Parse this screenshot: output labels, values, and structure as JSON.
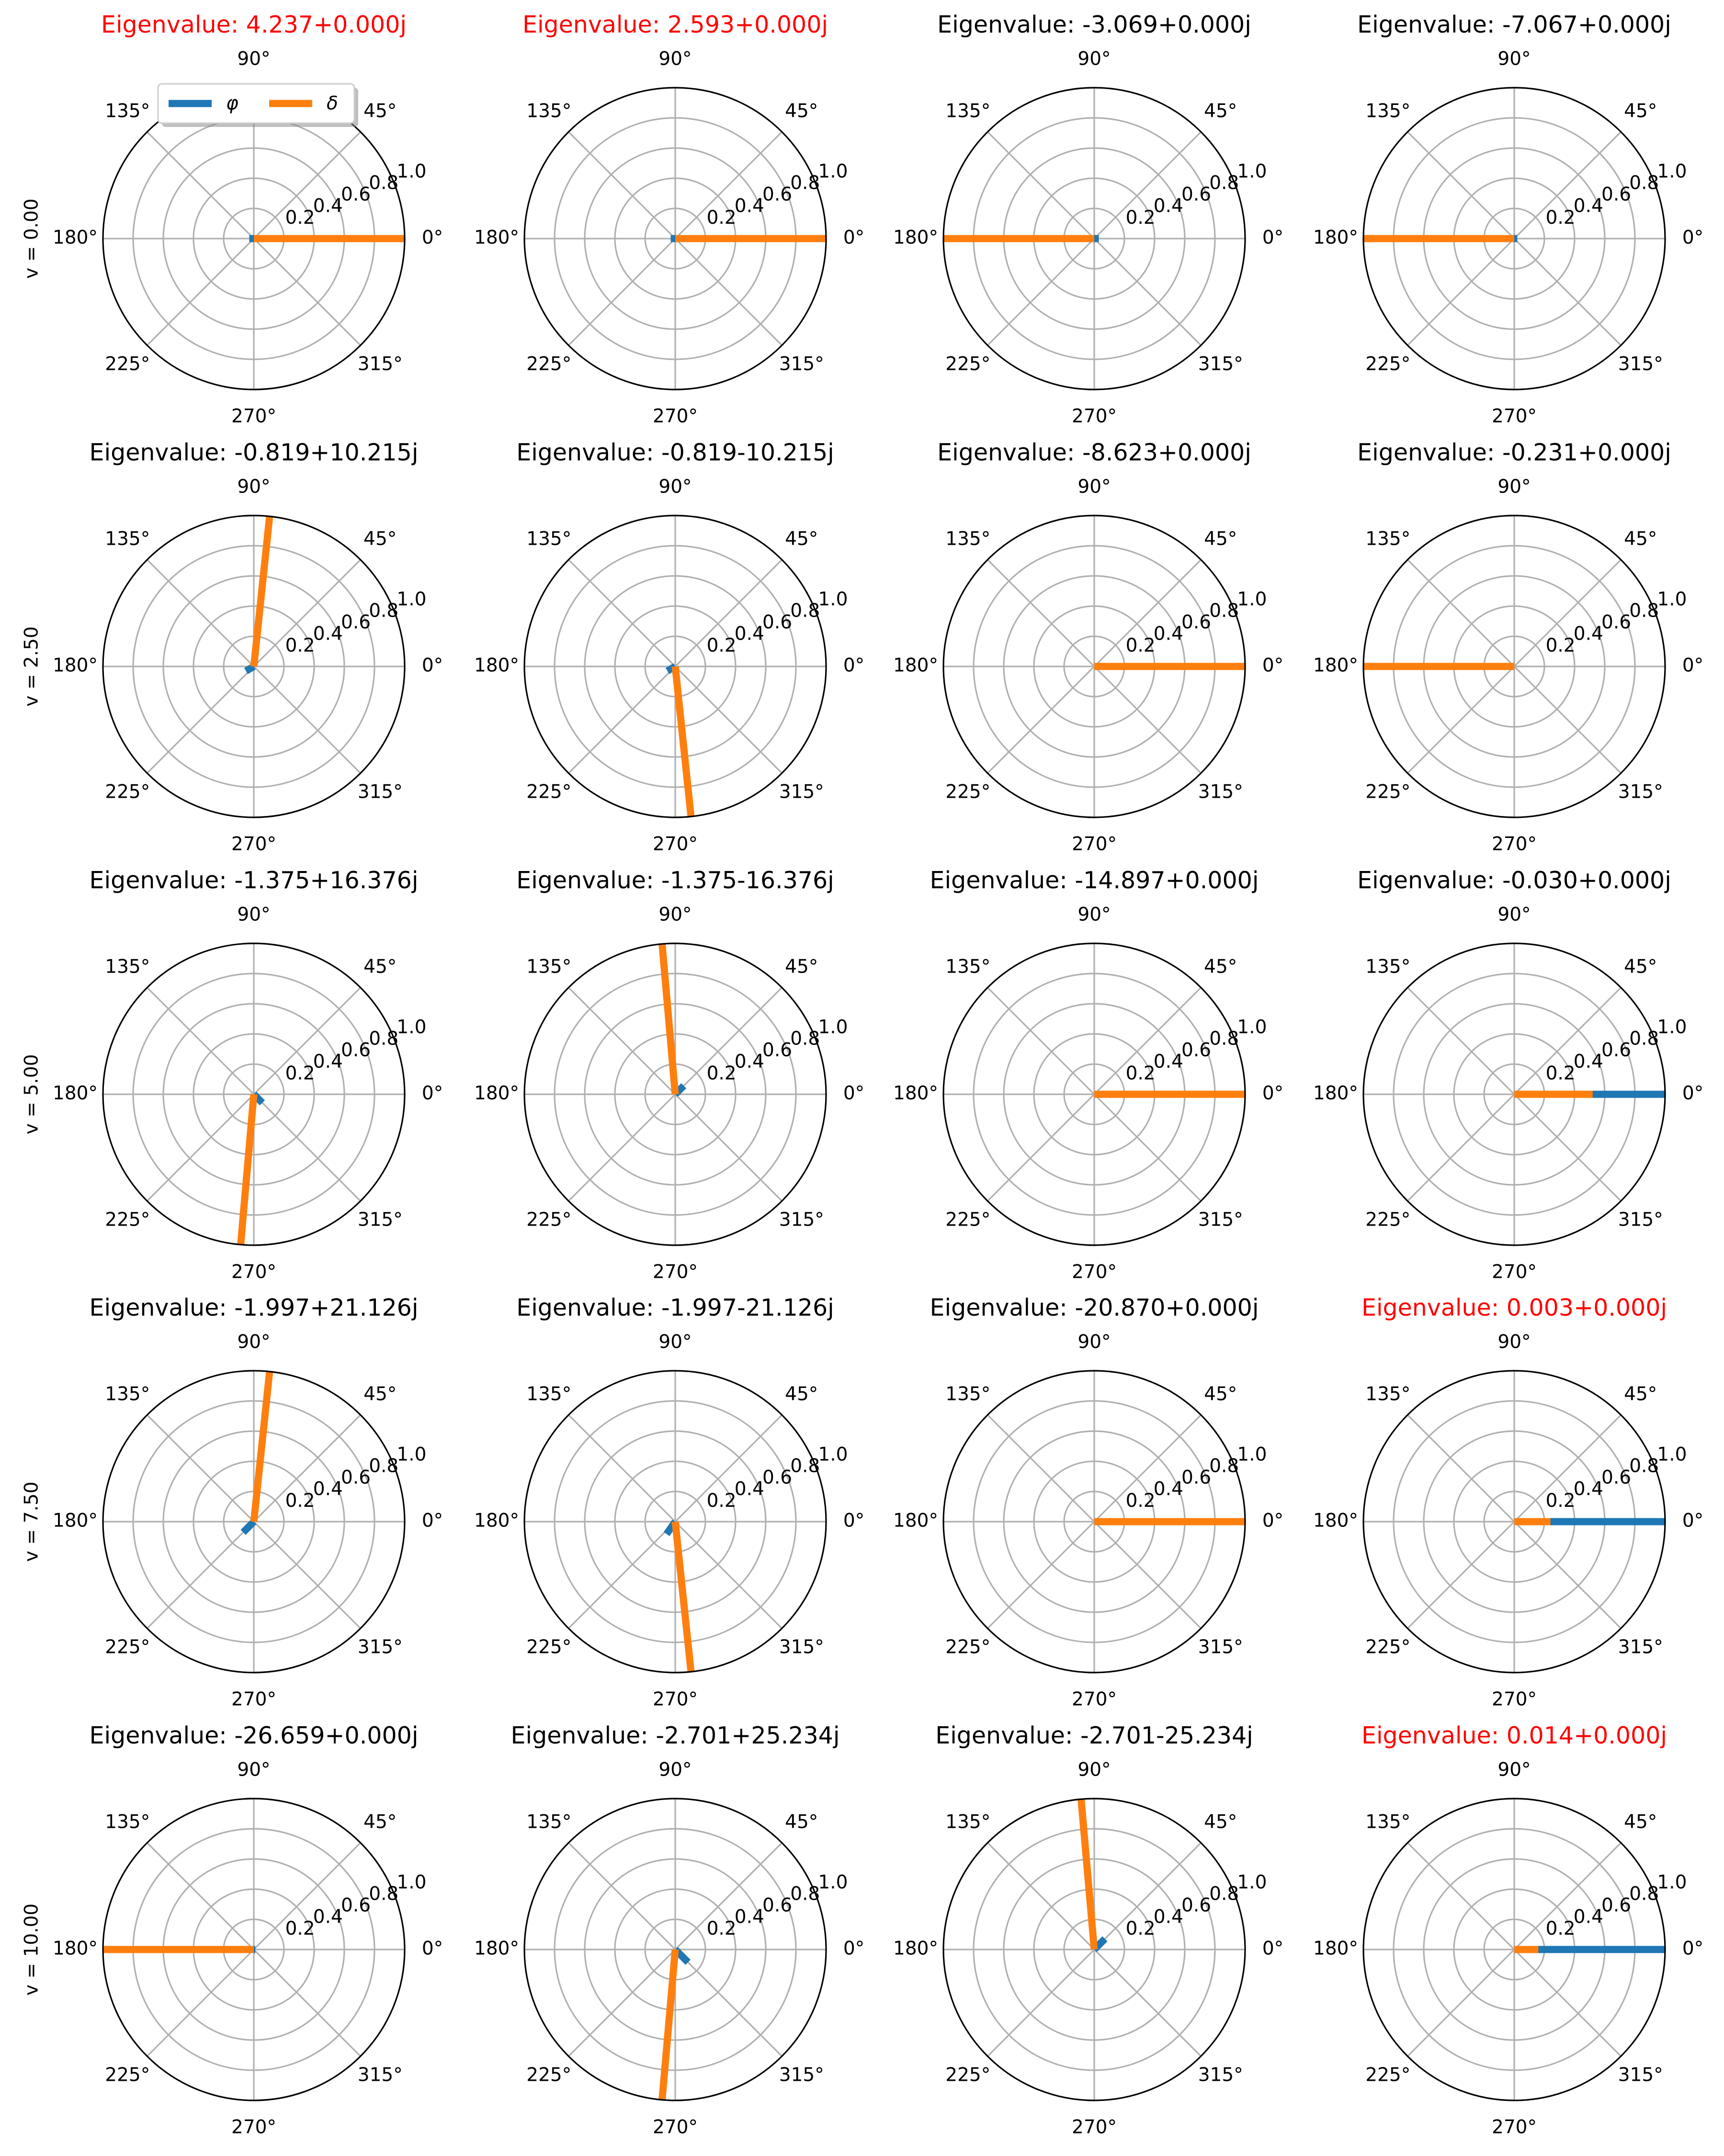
{
  "chart_data": {
    "type": "polar",
    "grid": true,
    "colors": {
      "phi": "#1f77b4",
      "delta": "#ff7f0e",
      "unstable_title": "#ff0000",
      "normal_title": "#000000"
    },
    "legend": {
      "location": "upper-left of first panel",
      "entries": [
        {
          "key": "phi",
          "label": "φ"
        },
        {
          "key": "delta",
          "label": "δ"
        }
      ]
    },
    "angle_tick_labels": [
      "0°",
      "45°",
      "90°",
      "135°",
      "180°",
      "225°",
      "270°",
      "315°"
    ],
    "radial_tick_labels": [
      "0.2",
      "0.4",
      "0.6",
      "0.8",
      "1.0"
    ],
    "rlim": [
      0,
      1.0
    ],
    "rows": [
      {
        "label": "v = 0.00",
        "panels": [
          {
            "title": "Eigenvalue: 4.237+0.000j",
            "unstable": true,
            "phi": {
              "r": 0.03,
              "theta_deg": 180
            },
            "delta": {
              "r": 1.0,
              "theta_deg": 0
            }
          },
          {
            "title": "Eigenvalue: 2.593+0.000j",
            "unstable": true,
            "phi": {
              "r": 0.03,
              "theta_deg": 180
            },
            "delta": {
              "r": 1.0,
              "theta_deg": 0
            }
          },
          {
            "title": "Eigenvalue: -3.069+0.000j",
            "unstable": false,
            "phi": {
              "r": 0.03,
              "theta_deg": 0
            },
            "delta": {
              "r": 1.0,
              "theta_deg": 180
            }
          },
          {
            "title": "Eigenvalue: -7.067+0.000j",
            "unstable": false,
            "phi": {
              "r": 0.02,
              "theta_deg": 0
            },
            "delta": {
              "r": 1.0,
              "theta_deg": 180
            }
          }
        ]
      },
      {
        "label": "v = 2.50",
        "panels": [
          {
            "title": "Eigenvalue: -0.819+10.215j",
            "unstable": false,
            "phi": {
              "r": 0.06,
              "theta_deg": 210
            },
            "delta": {
              "r": 1.0,
              "theta_deg": 84
            }
          },
          {
            "title": "Eigenvalue: -0.819-10.215j",
            "unstable": false,
            "phi": {
              "r": 0.06,
              "theta_deg": 210
            },
            "delta": {
              "r": 1.0,
              "theta_deg": 276
            }
          },
          {
            "title": "Eigenvalue: -8.623+0.000j",
            "unstable": false,
            "phi": {
              "r": 0.01,
              "theta_deg": 0
            },
            "delta": {
              "r": 1.0,
              "theta_deg": 0
            }
          },
          {
            "title": "Eigenvalue: -0.231+0.000j",
            "unstable": false,
            "phi": {
              "r": 0.53,
              "theta_deg": 180
            },
            "delta": {
              "r": 1.0,
              "theta_deg": 180
            }
          }
        ]
      },
      {
        "label": "v = 5.00",
        "panels": [
          {
            "title": "Eigenvalue: -1.375+16.376j",
            "unstable": false,
            "phi": {
              "r": 0.08,
              "theta_deg": 315
            },
            "delta": {
              "r": 1.0,
              "theta_deg": 265
            }
          },
          {
            "title": "Eigenvalue: -1.375-16.376j",
            "unstable": false,
            "phi": {
              "r": 0.08,
              "theta_deg": 45
            },
            "delta": {
              "r": 1.0,
              "theta_deg": 95
            }
          },
          {
            "title": "Eigenvalue: -14.897+0.000j",
            "unstable": false,
            "phi": {
              "r": 0.01,
              "theta_deg": 0
            },
            "delta": {
              "r": 1.0,
              "theta_deg": 0
            }
          },
          {
            "title": "Eigenvalue: -0.030+0.000j",
            "unstable": false,
            "phi": {
              "r": 1.0,
              "theta_deg": 0
            },
            "delta": {
              "r": 0.52,
              "theta_deg": 0
            }
          }
        ]
      },
      {
        "label": "v = 7.50",
        "panels": [
          {
            "title": "Eigenvalue: -1.997+21.126j",
            "unstable": false,
            "phi": {
              "r": 0.1,
              "theta_deg": 225
            },
            "delta": {
              "r": 1.0,
              "theta_deg": 84
            }
          },
          {
            "title": "Eigenvalue: -1.997-21.126j",
            "unstable": false,
            "phi": {
              "r": 0.1,
              "theta_deg": 235
            },
            "delta": {
              "r": 1.0,
              "theta_deg": 276
            }
          },
          {
            "title": "Eigenvalue: -20.870+0.000j",
            "unstable": false,
            "phi": {
              "r": 0.01,
              "theta_deg": 0
            },
            "delta": {
              "r": 1.0,
              "theta_deg": 0
            }
          },
          {
            "title": "Eigenvalue: 0.003+0.000j",
            "unstable": true,
            "phi": {
              "r": 1.0,
              "theta_deg": 0
            },
            "delta": {
              "r": 0.24,
              "theta_deg": 0
            }
          }
        ]
      },
      {
        "label": "v = 10.00",
        "panels": [
          {
            "title": "Eigenvalue: -26.659+0.000j",
            "unstable": false,
            "phi": {
              "r": 0.01,
              "theta_deg": 0
            },
            "delta": {
              "r": 1.0,
              "theta_deg": 180
            }
          },
          {
            "title": "Eigenvalue: -2.701+25.234j",
            "unstable": false,
            "phi": {
              "r": 0.12,
              "theta_deg": 315
            },
            "delta": {
              "r": 1.0,
              "theta_deg": 265
            }
          },
          {
            "title": "Eigenvalue: -2.701-25.234j",
            "unstable": false,
            "phi": {
              "r": 0.1,
              "theta_deg": 45
            },
            "delta": {
              "r": 1.0,
              "theta_deg": 95
            }
          },
          {
            "title": "Eigenvalue: 0.014+0.000j",
            "unstable": true,
            "phi": {
              "r": 1.0,
              "theta_deg": 0
            },
            "delta": {
              "r": 0.16,
              "theta_deg": 0
            }
          }
        ]
      }
    ]
  }
}
